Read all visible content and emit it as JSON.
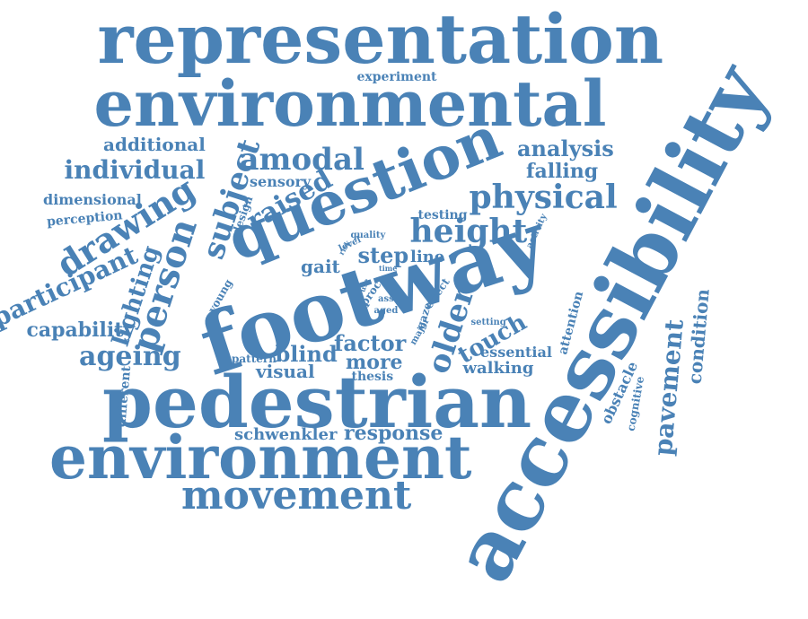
{
  "color": "#4a82b6",
  "words": [
    "representation",
    "environmental",
    "accessibility",
    "footway",
    "question",
    "pedestrian",
    "environment",
    "movement",
    "physical",
    "height",
    "amodal",
    "drawing",
    "person",
    "subject",
    "raised",
    "additional",
    "individual",
    "analysis",
    "falling",
    "experiment",
    "sensory",
    "dimensional",
    "perception",
    "participant",
    "lighting",
    "capability",
    "ageing",
    "blind",
    "visual",
    "factor",
    "more",
    "older",
    "touch",
    "step",
    "line",
    "gait",
    "testing",
    "design",
    "quality",
    "activity",
    "risk",
    "level",
    "time",
    "effect",
    "young",
    "proc",
    "ass",
    "aged",
    "use",
    "gaze",
    "major",
    "setting",
    "pattern",
    "thesis",
    "essential",
    "walking",
    "attention",
    "obstacle",
    "pavement",
    "condition",
    "cognitive",
    "different",
    "schwenkler",
    "response"
  ]
}
